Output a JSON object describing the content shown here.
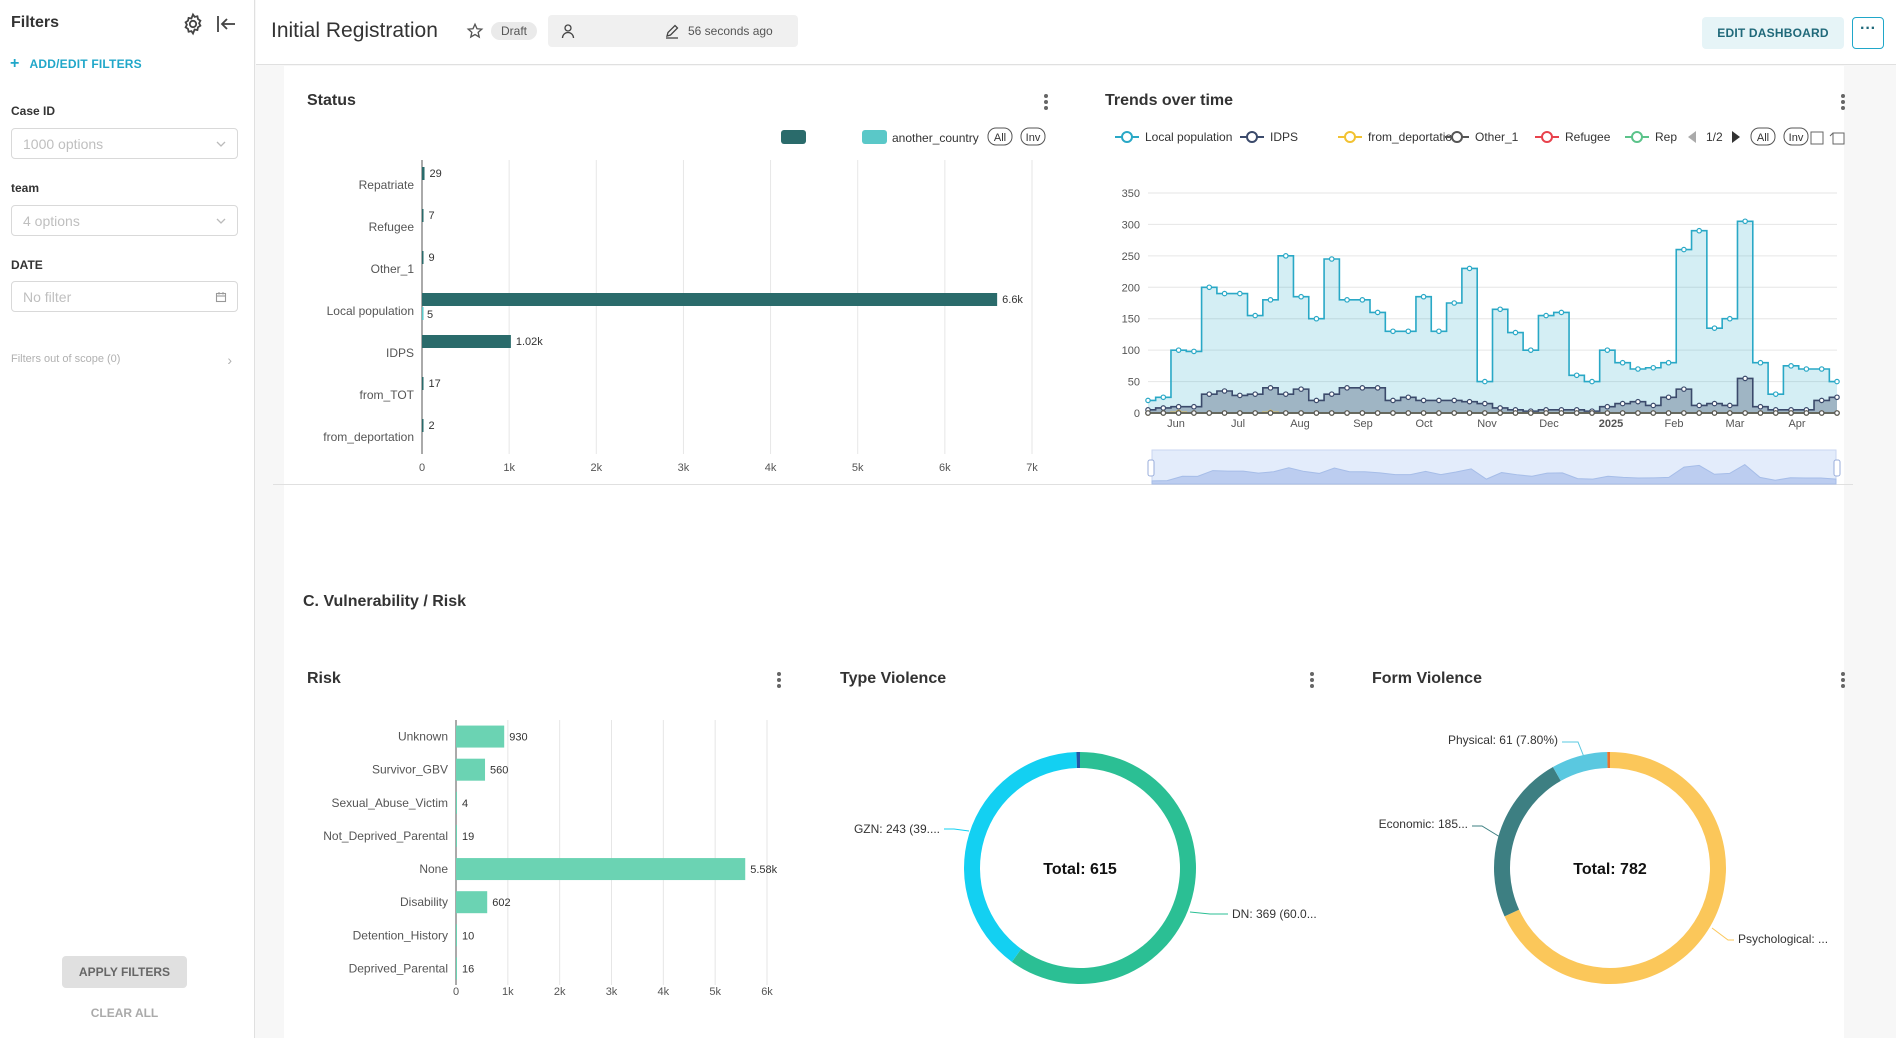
{
  "sidebar": {
    "title": "Filters",
    "add_edit": "ADD/EDIT FILTERS",
    "filters": [
      {
        "label": "Case ID",
        "placeholder": "1000 options"
      },
      {
        "label": "team",
        "placeholder": "4 options"
      },
      {
        "label": "DATE",
        "placeholder": "No filter"
      }
    ],
    "out_of_scope": "Filters out of scope (0)",
    "apply": "APPLY FILTERS",
    "clear": "CLEAR ALL"
  },
  "header": {
    "title": "Initial Registration",
    "status": "Draft",
    "modified": "56 seconds ago",
    "edit_button": "EDIT DASHBOARD",
    "more": "···"
  },
  "section": {
    "title": "C. Vulnerability / Risk"
  },
  "colors": {
    "status_bar": "#2a6b6b",
    "another_country": "#5ac8c8",
    "local": "#29a8c6",
    "idps": "#3b4a6b",
    "deportation": "#f2c232",
    "other": "#555555",
    "refugee": "#e8424c",
    "rep": "#5bc38a",
    "risk_bar": "#6bd3b3",
    "gzn": "#13d0f2",
    "dn": "#2bbf94",
    "physical": "#5ac8e0",
    "economic": "#3d7f82",
    "psychological": "#fbc75a"
  },
  "chart_data": [
    {
      "type": "bar",
      "title": "Status",
      "orientation": "horizontal",
      "legend": [
        "",
        "another_country"
      ],
      "legend_controls": [
        "All",
        "Inv"
      ],
      "categories": [
        "Repatriate",
        "Refugee",
        "Other_1",
        "Local population",
        "IDPS",
        "from_TOT",
        "from_deportation"
      ],
      "series": [
        {
          "values": [
            29,
            7,
            9,
            6600,
            1020,
            17,
            2
          ],
          "labels": [
            "29",
            "7",
            "9",
            "6.6k",
            "1.02k",
            "17",
            "2"
          ]
        },
        {
          "name": "another_country",
          "values": [
            null,
            null,
            null,
            5,
            null,
            null,
            null
          ],
          "labels": [
            "",
            "",
            "",
            "5",
            "",
            "",
            ""
          ]
        }
      ],
      "xlim": [
        0,
        7000
      ],
      "xticks": [
        "0",
        "1k",
        "2k",
        "3k",
        "4k",
        "5k",
        "6k",
        "7k"
      ]
    },
    {
      "type": "area",
      "title": "Trends over time",
      "legend": [
        "Local population",
        "IDPS",
        "from_deportation",
        "Other_1",
        "Refugee",
        "Rep"
      ],
      "legend_page": "1/2",
      "legend_controls": [
        "All",
        "Inv"
      ],
      "ylim": [
        0,
        350
      ],
      "yticks": [
        "0",
        "50",
        "100",
        "150",
        "200",
        "250",
        "300",
        "350"
      ],
      "xticks": [
        "Jun",
        "Jul",
        "Aug",
        "Sep",
        "Oct",
        "Nov",
        "Dec",
        "2025",
        "Feb",
        "Mar",
        "Apr"
      ],
      "series": [
        {
          "name": "Local population",
          "values": [
            20,
            25,
            100,
            98,
            200,
            190,
            190,
            155,
            180,
            250,
            185,
            150,
            245,
            180,
            180,
            160,
            130,
            130,
            185,
            130,
            175,
            230,
            50,
            165,
            128,
            100,
            155,
            160,
            60,
            50,
            100,
            80,
            70,
            72,
            80,
            260,
            290,
            135,
            150,
            305,
            80,
            30,
            75,
            70,
            70,
            50
          ]
        },
        {
          "name": "IDPS",
          "values": [
            5,
            8,
            10,
            10,
            30,
            35,
            28,
            30,
            40,
            30,
            38,
            20,
            30,
            40,
            40,
            40,
            20,
            25,
            20,
            20,
            20,
            18,
            15,
            8,
            5,
            3,
            5,
            5,
            5,
            3,
            10,
            15,
            18,
            12,
            25,
            38,
            12,
            15,
            12,
            55,
            10,
            5,
            5,
            5,
            20,
            25
          ]
        },
        {
          "name": "from_deportation",
          "values": [
            0,
            0,
            1,
            0,
            0,
            0,
            0,
            0,
            1,
            0,
            0,
            0,
            0,
            0,
            0,
            0,
            0,
            0,
            0,
            0,
            0,
            0,
            0,
            0,
            0,
            0,
            0,
            0,
            0,
            0,
            0,
            0,
            0,
            0,
            0,
            0,
            0,
            0,
            0,
            0,
            0,
            0,
            0,
            0,
            0,
            0
          ]
        },
        {
          "name": "Other_1",
          "values": [
            0,
            0,
            0,
            0,
            0,
            0,
            0,
            0,
            0,
            0,
            0,
            0,
            0,
            0,
            0,
            0,
            0,
            0,
            0,
            0,
            0,
            0,
            0,
            0,
            0,
            0,
            0,
            0,
            0,
            0,
            0,
            0,
            0,
            0,
            0,
            0,
            0,
            0,
            0,
            0,
            0,
            0,
            0,
            0,
            0,
            0
          ]
        },
        {
          "name": "Refugee",
          "values": [
            0,
            0,
            0,
            0,
            0,
            0,
            0,
            0,
            0,
            0,
            0,
            0,
            0,
            0,
            0,
            0,
            0,
            0,
            0,
            0,
            0,
            0,
            0,
            0,
            0,
            0,
            0,
            0,
            0,
            0,
            0,
            0,
            0,
            0,
            0,
            0,
            0,
            0,
            0,
            0,
            0,
            0,
            0,
            0,
            0,
            0
          ]
        },
        {
          "name": "Rep",
          "values": [
            0,
            0,
            0,
            0,
            0,
            0,
            0,
            0,
            0,
            0,
            0,
            0,
            0,
            0,
            0,
            0,
            0,
            0,
            0,
            0,
            0,
            0,
            0,
            0,
            0,
            0,
            0,
            0,
            0,
            0,
            0,
            0,
            0,
            0,
            0,
            0,
            0,
            0,
            0,
            0,
            0,
            0,
            0,
            0,
            0,
            0
          ]
        }
      ]
    },
    {
      "type": "bar",
      "title": "Risk",
      "orientation": "horizontal",
      "categories": [
        "Unknown",
        "Survivor_GBV",
        "Sexual_Abuse_Victim",
        "Not_Deprived_Parental",
        "None",
        "Disability",
        "Detention_History",
        "Deprived_Parental"
      ],
      "values": [
        930,
        560,
        4,
        19,
        5580,
        602,
        10,
        16
      ],
      "labels": [
        "930",
        "560",
        "4",
        "19",
        "5.58k",
        "602",
        "10",
        "16"
      ],
      "xlim": [
        0,
        6000
      ],
      "xticks": [
        "0",
        "1k",
        "2k",
        "3k",
        "4k",
        "5k",
        "6k"
      ]
    },
    {
      "type": "pie",
      "title": "Type Violence",
      "center_label": "Total: 615",
      "slices": [
        {
          "name": "DN",
          "value": 369,
          "label": "DN: 369 (60.0..."
        },
        {
          "name": "GZN",
          "value": 243,
          "label": "GZN: 243 (39...."
        },
        {
          "name": "",
          "value": 3,
          "label": ""
        }
      ]
    },
    {
      "type": "pie",
      "title": "Form Violence",
      "center_label": "Total: 782",
      "slices": [
        {
          "name": "Psychological",
          "value": 533,
          "label": "Psychological: ..."
        },
        {
          "name": "Economic",
          "value": 185,
          "label": "Economic: 185..."
        },
        {
          "name": "Physical",
          "value": 61,
          "label": "Physical: 61 (7.80%)"
        },
        {
          "name": "",
          "value": 3,
          "label": ""
        }
      ]
    }
  ]
}
